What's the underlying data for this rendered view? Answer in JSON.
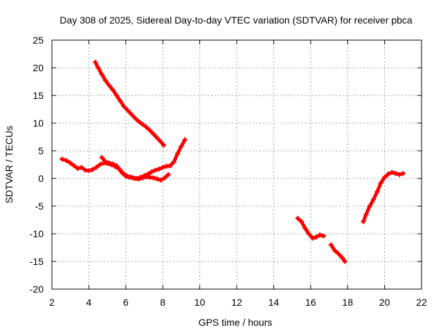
{
  "chart_data": {
    "type": "scatter",
    "title": "Day 308 of 2025, Sidereal Day-to-day VTEC variation (SDTVAR) for receiver pbca",
    "xlabel": "GPS time / hours",
    "ylabel": "SDTVAR / TECUs",
    "xlim": [
      2,
      22
    ],
    "ylim": [
      -20,
      25
    ],
    "xticks": [
      "2",
      "4",
      "6",
      "8",
      "10",
      "12",
      "14",
      "16",
      "18",
      "20",
      "22"
    ],
    "yticks": [
      "25",
      "20",
      "15",
      "10",
      "5",
      "0",
      "-5",
      "-10",
      "-15",
      "-20"
    ],
    "grid": true,
    "color": "#ff0000",
    "series": [
      {
        "name": "segment-a",
        "x": [
          2.55,
          2.8,
          3.0,
          3.2,
          3.4,
          3.6,
          3.8,
          4.0,
          4.2,
          4.4,
          4.6,
          4.8,
          5.0,
          5.2,
          5.4,
          5.6,
          5.8,
          6.0,
          6.2,
          6.4,
          6.6,
          6.8,
          7.0,
          7.2,
          7.4,
          7.6,
          7.8,
          8.0,
          8.2,
          8.4,
          8.6,
          8.8,
          9.0,
          9.2
        ],
        "y": [
          3.5,
          3.2,
          2.8,
          2.3,
          1.8,
          2.0,
          1.5,
          1.4,
          1.6,
          2.0,
          2.5,
          2.8,
          2.7,
          2.5,
          2.2,
          1.8,
          1.0,
          0.4,
          0.2,
          0.1,
          0.0,
          0.2,
          0.5,
          0.8,
          1.2,
          1.5,
          1.7,
          2.0,
          2.2,
          2.3,
          3.0,
          4.5,
          5.8,
          7.0
        ]
      },
      {
        "name": "segment-b",
        "x": [
          4.7,
          4.9,
          5.1,
          5.3,
          5.5,
          5.7,
          5.9,
          6.1,
          6.3,
          6.5,
          6.7,
          6.9,
          7.1,
          7.3,
          7.5,
          7.7,
          7.9,
          8.1,
          8.3
        ],
        "y": [
          3.8,
          3.0,
          2.8,
          2.6,
          2.3,
          1.5,
          0.8,
          0.4,
          0.2,
          0.0,
          -0.1,
          0.1,
          0.3,
          0.2,
          0.1,
          -0.1,
          -0.3,
          0.1,
          0.7
        ]
      },
      {
        "name": "segment-c",
        "x": [
          4.35,
          4.5,
          4.7,
          4.9,
          5.1,
          5.3,
          5.5,
          5.7,
          5.9,
          6.1,
          6.3,
          6.5,
          6.7,
          6.9,
          7.1,
          7.3,
          7.5,
          7.7,
          7.9,
          8.05
        ],
        "y": [
          21.0,
          20.0,
          18.8,
          17.7,
          16.8,
          16.0,
          15.0,
          14.0,
          13.0,
          12.3,
          11.6,
          10.9,
          10.3,
          9.8,
          9.3,
          8.7,
          8.0,
          7.3,
          6.6,
          6.0
        ]
      },
      {
        "name": "segment-d",
        "x": [
          15.3,
          15.5,
          15.7,
          15.9,
          16.1,
          16.3,
          16.5,
          16.7
        ],
        "y": [
          -7.2,
          -7.8,
          -9.0,
          -10.0,
          -10.8,
          -10.6,
          -10.2,
          -10.4
        ]
      },
      {
        "name": "segment-e",
        "x": [
          17.1,
          17.3,
          17.5,
          17.7,
          17.85
        ],
        "y": [
          -12.0,
          -13.0,
          -13.6,
          -14.3,
          -15.0
        ]
      },
      {
        "name": "segment-f",
        "x": [
          18.85,
          19.0,
          19.2,
          19.4,
          19.6,
          19.8,
          20.0,
          20.2,
          20.4,
          20.6,
          20.8,
          21.0
        ],
        "y": [
          -7.8,
          -6.5,
          -5.0,
          -3.8,
          -2.4,
          -0.8,
          0.2,
          0.8,
          1.1,
          0.9,
          0.7,
          0.9
        ]
      }
    ]
  }
}
